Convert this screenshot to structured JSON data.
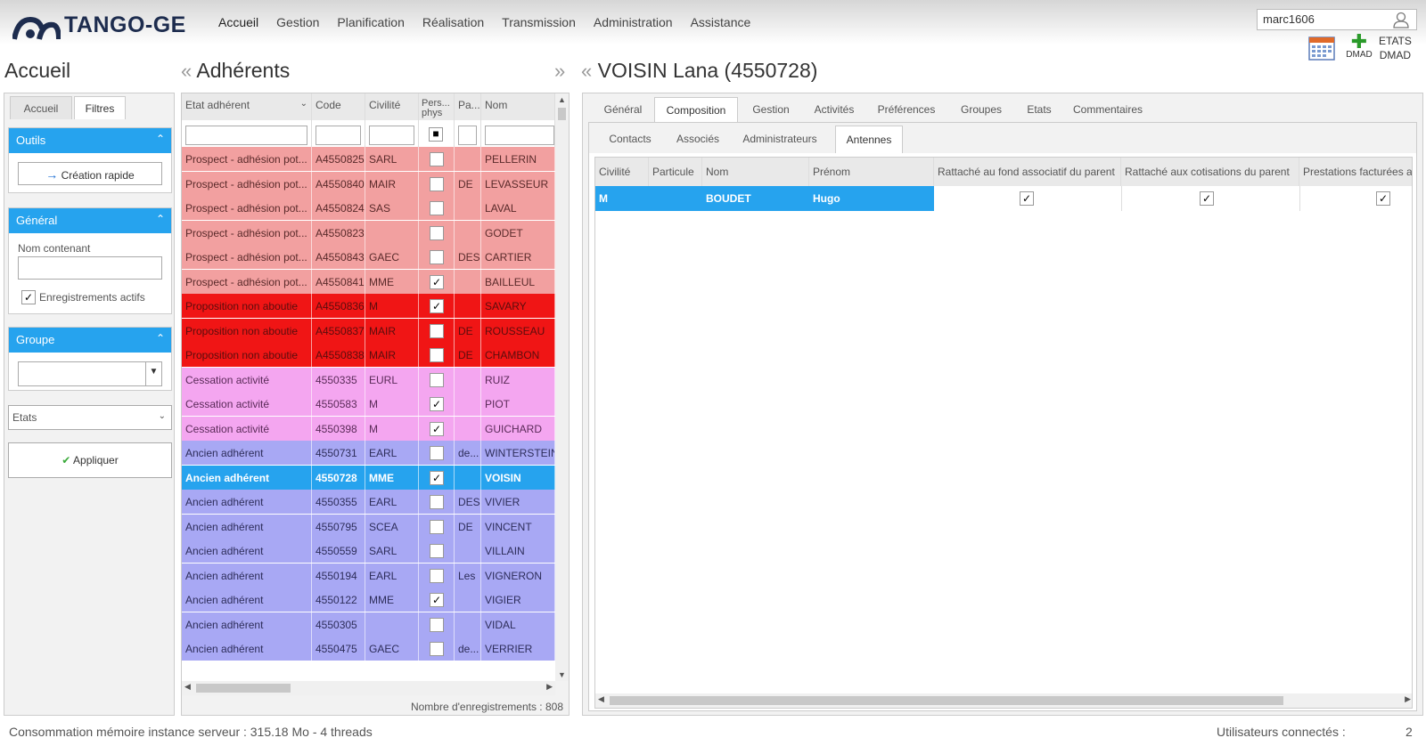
{
  "app": {
    "name": "TANGO-GE",
    "username": "marc1606"
  },
  "menu": [
    "Accueil",
    "Gestion",
    "Planification",
    "Réalisation",
    "Transmission",
    "Administration",
    "Assistance"
  ],
  "toolbar": {
    "dmad_label": "DMAD",
    "etats_label": "ETATS",
    "etats_dmad_label": "DMAD"
  },
  "left": {
    "title": "Accueil",
    "tabs": [
      "Accueil",
      "Filtres"
    ],
    "outils": {
      "header": "Outils",
      "creation_button": "Création rapide"
    },
    "general": {
      "header": "Général",
      "nom_label": "Nom contenant",
      "nom_value": "",
      "actifs_label": "Enregistrements actifs",
      "actifs_checked": true
    },
    "groupe": {
      "header": "Groupe",
      "value": ""
    },
    "etats": {
      "label": "Etats"
    },
    "apply_button": "Appliquer"
  },
  "middle": {
    "title": "Adhérents",
    "columns": [
      "Etat adhérent",
      "Code",
      "Civilité",
      "Pers... phys",
      "Pa...",
      "Nom"
    ],
    "rows": [
      {
        "etat": "Prospect - adhésion pot...",
        "code": "A4550825",
        "civ": "SARL",
        "pp": false,
        "pa": "",
        "nom": "PELLERIN",
        "style": "prospect"
      },
      {
        "etat": "Prospect - adhésion pot...",
        "code": "A4550840",
        "civ": "MAIR",
        "pp": false,
        "pa": "DE",
        "nom": "LEVASSEUR",
        "style": "prospect"
      },
      {
        "etat": "Prospect - adhésion pot...",
        "code": "A4550824",
        "civ": "SAS",
        "pp": false,
        "pa": "",
        "nom": "LAVAL",
        "style": "prospect"
      },
      {
        "etat": "Prospect - adhésion pot...",
        "code": "A4550823",
        "civ": "",
        "pp": false,
        "pa": "",
        "nom": "GODET",
        "style": "prospect"
      },
      {
        "etat": "Prospect - adhésion pot...",
        "code": "A4550843",
        "civ": "GAEC",
        "pp": false,
        "pa": "DES",
        "nom": "CARTIER",
        "style": "prospect"
      },
      {
        "etat": "Prospect - adhésion pot...",
        "code": "A4550841",
        "civ": "MME",
        "pp": true,
        "pa": "",
        "nom": "BAILLEUL",
        "style": "prospect"
      },
      {
        "etat": "Proposition non aboutie",
        "code": "A4550836",
        "civ": "M",
        "pp": true,
        "pa": "",
        "nom": "SAVARY",
        "style": "proposition"
      },
      {
        "etat": "Proposition non aboutie",
        "code": "A4550837",
        "civ": "MAIR",
        "pp": false,
        "pa": "DE",
        "nom": "ROUSSEAU",
        "style": "proposition"
      },
      {
        "etat": "Proposition non aboutie",
        "code": "A4550838",
        "civ": "MAIR",
        "pp": false,
        "pa": "DE",
        "nom": "CHAMBON",
        "style": "proposition"
      },
      {
        "etat": "Cessation activité",
        "code": "4550335",
        "civ": "EURL",
        "pp": false,
        "pa": "",
        "nom": "RUIZ",
        "style": "cessation"
      },
      {
        "etat": "Cessation activité",
        "code": "4550583",
        "civ": "M",
        "pp": true,
        "pa": "",
        "nom": "PIOT",
        "style": "cessation"
      },
      {
        "etat": "Cessation activité",
        "code": "4550398",
        "civ": "M",
        "pp": true,
        "pa": "",
        "nom": "GUICHARD",
        "style": "cessation"
      },
      {
        "etat": "Ancien adhérent",
        "code": "4550731",
        "civ": "EARL",
        "pp": false,
        "pa": "de...",
        "nom": "WINTERSTEIN",
        "style": "ancien"
      },
      {
        "etat": "Ancien adhérent",
        "code": "4550728",
        "civ": "MME",
        "pp": true,
        "pa": "",
        "nom": "VOISIN",
        "style": "selected"
      },
      {
        "etat": "Ancien adhérent",
        "code": "4550355",
        "civ": "EARL",
        "pp": false,
        "pa": "DES",
        "nom": "VIVIER",
        "style": "ancien"
      },
      {
        "etat": "Ancien adhérent",
        "code": "4550795",
        "civ": "SCEA",
        "pp": false,
        "pa": "DE",
        "nom": "VINCENT",
        "style": "ancien"
      },
      {
        "etat": "Ancien adhérent",
        "code": "4550559",
        "civ": "SARL",
        "pp": false,
        "pa": "",
        "nom": "VILLAIN",
        "style": "ancien"
      },
      {
        "etat": "Ancien adhérent",
        "code": "4550194",
        "civ": "EARL",
        "pp": false,
        "pa": "Les",
        "nom": "VIGNERON",
        "style": "ancien"
      },
      {
        "etat": "Ancien adhérent",
        "code": "4550122",
        "civ": "MME",
        "pp": true,
        "pa": "",
        "nom": "VIGIER",
        "style": "ancien"
      },
      {
        "etat": "Ancien adhérent",
        "code": "4550305",
        "civ": "",
        "pp": false,
        "pa": "",
        "nom": "VIDAL",
        "style": "ancien"
      },
      {
        "etat": "Ancien adhérent",
        "code": "4550475",
        "civ": "GAEC",
        "pp": false,
        "pa": "de...",
        "nom": "VERRIER",
        "style": "ancien"
      }
    ],
    "count_label": "Nombre d'enregistrements : 808"
  },
  "right": {
    "title": "VOISIN Lana (4550728)",
    "tabs": [
      "Général",
      "Composition",
      "Gestion",
      "Activités",
      "Préférences",
      "Groupes",
      "Etats",
      "Commentaires"
    ],
    "subtabs": [
      "Contacts",
      "Associés",
      "Administrateurs",
      "Antennes"
    ],
    "columns": [
      "Civilité",
      "Particule",
      "Nom",
      "Prénom",
      "Rattaché au fond associatif du parent",
      "Rattaché aux cotisations du parent",
      "Prestations facturées au"
    ],
    "row": {
      "civilite": "M",
      "particule": "",
      "nom": "BOUDET",
      "prenom": "Hugo",
      "fond": true,
      "cotisations": true,
      "prestations": true
    }
  },
  "footer": {
    "memory": "Consommation mémoire instance serveur : 315.18 Mo - 4 threads",
    "users_label": "Utilisateurs connectés :",
    "users_count": "2"
  },
  "colors": {
    "accent": "#26a3ee",
    "prospect": "#f2a0a0",
    "proposition": "#f01515",
    "cessation": "#f4a6f0",
    "ancien": "#a8a8f4",
    "selected": "#26a3ee"
  }
}
